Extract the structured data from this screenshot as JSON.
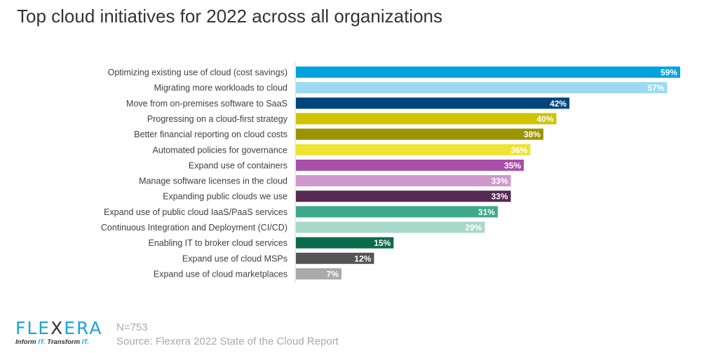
{
  "chart_data": {
    "type": "bar",
    "orientation": "horizontal",
    "title": "Top cloud initiatives for 2022 across all organizations",
    "xlabel": "",
    "ylabel": "",
    "xlim": [
      0,
      60
    ],
    "grid": false,
    "categories": [
      "Optimizing existing use of cloud (cost savings)",
      "Migrating more workloads to cloud",
      "Move from on-premises software to SaaS",
      "Progressing on a cloud-first strategy",
      "Better financial reporting on cloud costs",
      "Automated policies for  governance",
      "Expand use of containers",
      "Manage software licenses in the cloud",
      "Expanding public clouds we use",
      "Expand use of public cloud IaaS/PaaS services",
      "Continuous Integration and Deployment (CI/CD)",
      "Enabling IT to broker cloud services",
      "Expand use of cloud MSPs",
      "Expand use of cloud marketplaces"
    ],
    "values": [
      59,
      57,
      42,
      40,
      38,
      36,
      35,
      33,
      33,
      31,
      29,
      15,
      12,
      7
    ],
    "value_labels": [
      "59%",
      "57%",
      "42%",
      "40%",
      "38%",
      "36%",
      "35%",
      "33%",
      "33%",
      "31%",
      "29%",
      "15%",
      "12%",
      "7%"
    ],
    "colors": [
      "#00a3e0",
      "#9dd9f3",
      "#00457c",
      "#d0c300",
      "#9a9400",
      "#ede433",
      "#a94fa8",
      "#cf97cc",
      "#552a53",
      "#3ea88a",
      "#a8d8ca",
      "#0b6b4d",
      "#555555",
      "#aaaaaa"
    ]
  },
  "footer": {
    "n": "N=753",
    "source": "Source: Flexera 2022 State of the Cloud Report"
  },
  "logo": {
    "word_a": "FLE",
    "word_x": "X",
    "word_b": "ERA",
    "tag_a": "Inform ",
    "tag_b": "IT.",
    "tag_c": " Transform ",
    "tag_d": "IT."
  }
}
